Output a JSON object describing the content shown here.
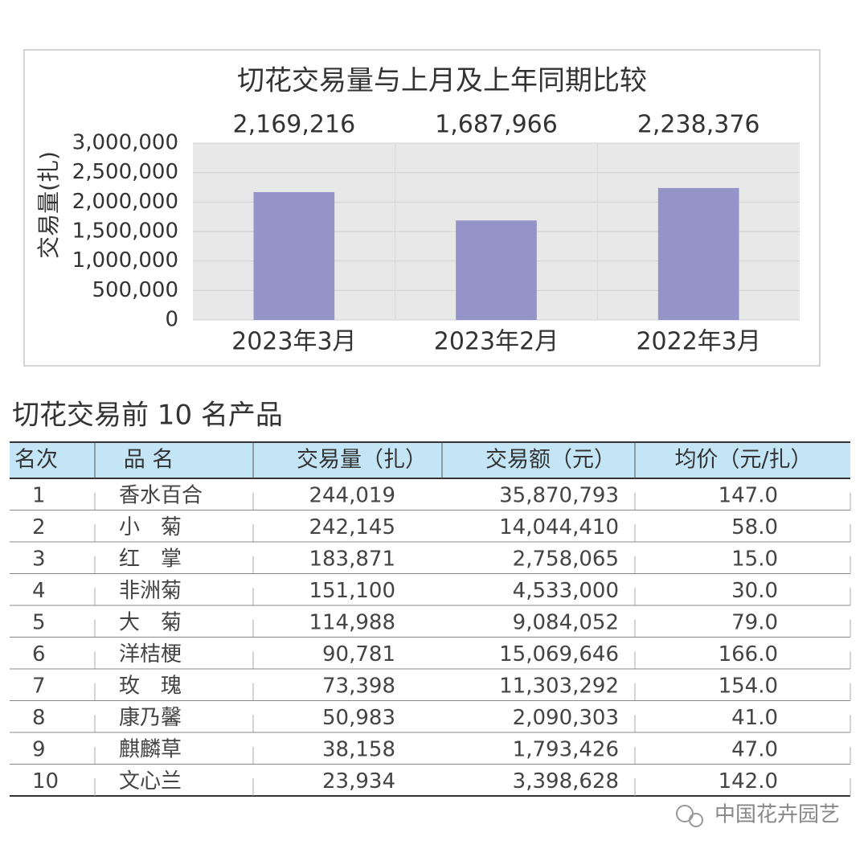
{
  "chart_data": {
    "type": "bar",
    "title": "切花交易量与上月及上年同期比较",
    "ylabel": "交易量(扎)",
    "categories": [
      "2023年3月",
      "2023年2月",
      "2022年3月"
    ],
    "values": [
      2169216,
      1687966,
      2238376
    ],
    "value_labels": [
      "2,169,216",
      "1,687,966",
      "2,238,376"
    ],
    "color": "#9494c8",
    "ylim": [
      0,
      3000000
    ],
    "yticks": [
      0,
      {
        "value": 500000,
        "label": "500,000"
      },
      {
        "value": 1000000,
        "label": "1,000,000"
      },
      {
        "value": 1500000,
        "label": "1,500,000"
      },
      {
        "value": 2000000,
        "label": "2,000,000"
      },
      {
        "value": 2500000,
        "label": "2,500,000"
      },
      {
        "value": 3000000,
        "label": "3,000,000"
      }
    ],
    "grid": true
  },
  "table": {
    "title": "切花交易前 10 名产品",
    "header": [
      "名次",
      "品 名",
      "交易量（扎）",
      "交易额（元）",
      "均价（元/扎）"
    ],
    "rows": [
      [
        "1",
        "香水百合",
        "244,019",
        "35,870,793",
        "147.0"
      ],
      [
        "2",
        "小　菊",
        "242,145",
        "14,044,410",
        "58.0"
      ],
      [
        "3",
        "红　掌",
        "183,871",
        "2,758,065",
        "15.0"
      ],
      [
        "4",
        "非洲菊",
        "151,100",
        "4,533,000",
        "30.0"
      ],
      [
        "5",
        "大　菊",
        "114,988",
        "9,084,052",
        "79.0"
      ],
      [
        "6",
        "洋桔梗",
        "90,781",
        "15,069,646",
        "166.0"
      ],
      [
        "7",
        "玫　瑰",
        "73,398",
        "11,303,292",
        "154.0"
      ],
      [
        "8",
        "康乃馨",
        "50,983",
        "2,090,303",
        "41.0"
      ],
      [
        "9",
        "麒麟草",
        "38,158",
        "1,793,426",
        "47.0"
      ],
      [
        "10",
        "文心兰",
        "23,934",
        "3,398,628",
        "142.0"
      ]
    ]
  },
  "watermark": "中国花卉园艺"
}
